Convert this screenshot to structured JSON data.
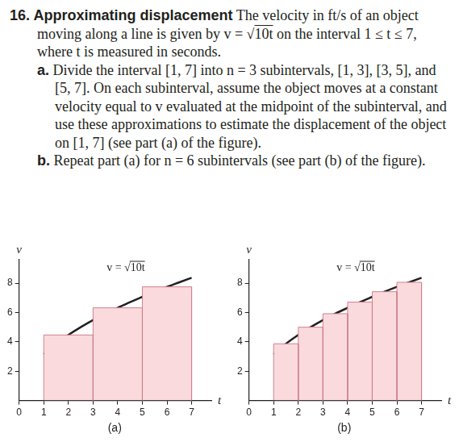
{
  "problem": {
    "number": "16.",
    "title": "Approximating displacement",
    "statement": "The velocity in ft/s of an object moving along a line is given by v = √10t on the interval 1 ≤ t ≤ 7, where t is measured in seconds.",
    "parts": [
      {
        "label": "a.",
        "text": "Divide the interval [1, 7] into n = 3 subintervals, [1, 3], [3, 5], and [5, 7]. On each subinterval, assume the object moves at a constant velocity equal to v evaluated at the midpoint of the subinterval, and use these approximations to estimate the displacement of the object on [1, 7] (see part (a) of the figure)."
      },
      {
        "label": "b.",
        "text": "Repeat part (a) for n = 6 subintervals (see part (b) of the figure)."
      }
    ]
  },
  "chart_data": [
    {
      "type": "bar",
      "subtitle": "(a)",
      "x_label": "t",
      "y_label": "v",
      "bins": [
        1,
        3,
        5,
        7
      ],
      "values": [
        4.47,
        6.32,
        7.75
      ],
      "color": "#fadadd",
      "series": [
        {
          "name": "v = √10t",
          "type": "line",
          "color": "#231f20",
          "x": [
            1,
            1.5,
            2,
            2.5,
            3,
            3.5,
            4,
            4.5,
            5,
            5.5,
            6,
            6.5,
            7
          ],
          "values": [
            3.16,
            3.87,
            4.47,
            5.0,
            5.48,
            5.92,
            6.32,
            6.71,
            7.07,
            7.42,
            7.75,
            8.06,
            8.37
          ]
        }
      ],
      "xlim": [
        0,
        7.8
      ],
      "xticks": [
        0,
        1,
        2,
        3,
        4,
        5,
        6,
        7
      ],
      "ylim": [
        0,
        9.6
      ],
      "yticks": [
        2,
        4,
        6,
        8
      ],
      "grid": false
    },
    {
      "type": "bar",
      "subtitle": "(b)",
      "x_label": "t",
      "y_label": "v",
      "bins": [
        1,
        2,
        3,
        4,
        5,
        6,
        7
      ],
      "values": [
        3.87,
        5.0,
        5.92,
        6.71,
        7.42,
        8.06
      ],
      "color": "#fadadd",
      "series": [
        {
          "name": "v = √10t",
          "type": "line",
          "color": "#231f20",
          "x": [
            1,
            1.5,
            2,
            2.5,
            3,
            3.5,
            4,
            4.5,
            5,
            5.5,
            6,
            6.5,
            7
          ],
          "values": [
            3.16,
            3.87,
            4.47,
            5.0,
            5.48,
            5.92,
            6.32,
            6.71,
            7.07,
            7.42,
            7.75,
            8.06,
            8.37
          ]
        }
      ],
      "xlim": [
        0,
        7.8
      ],
      "xticks": [
        0,
        1,
        2,
        3,
        4,
        5,
        6,
        7
      ],
      "ylim": [
        0,
        9.6
      ],
      "yticks": [
        2,
        4,
        6,
        8
      ],
      "grid": false
    }
  ]
}
